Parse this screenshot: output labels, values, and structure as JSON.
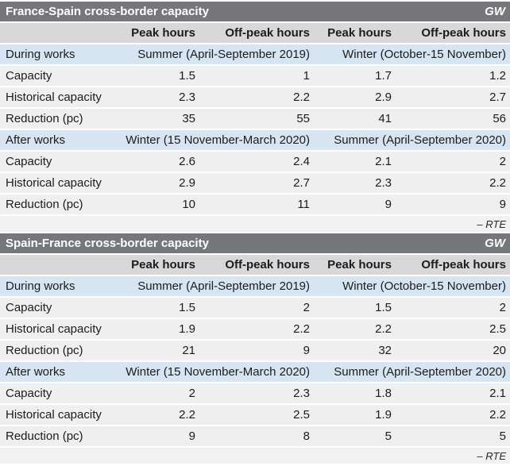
{
  "colors": {
    "title_bar": "#76777b",
    "title_text": "#ffffff",
    "header_row": "#d8d8d8",
    "band_row": "#d7e4f2",
    "data_row": "#efefef",
    "source_row": "#f1f1f1",
    "text": "#1c1c1c",
    "background": "#ffffff"
  },
  "chart_data": [
    {
      "type": "table",
      "title": "France-Spain cross-border capacity",
      "unit": "GW",
      "column_headers": [
        "Peak hours",
        "Off-peak hours",
        "Peak hours",
        "Off-peak hours"
      ],
      "sections": [
        {
          "band_label": "During works",
          "periods": [
            "Summer (April-September 2019)",
            "Winter (October-15 November)"
          ],
          "rows": [
            {
              "label": "Capacity",
              "values": [
                1.5,
                1,
                1.7,
                1.2
              ]
            },
            {
              "label": "Historical capacity",
              "values": [
                2.3,
                2.2,
                2.9,
                2.7
              ]
            },
            {
              "label": "Reduction (pc)",
              "values": [
                35,
                55,
                41,
                56
              ]
            }
          ]
        },
        {
          "band_label": "After works",
          "periods": [
            "Winter (15 November-March 2020)",
            "Summer (April-September 2020)"
          ],
          "rows": [
            {
              "label": "Capacity",
              "values": [
                2.6,
                2.4,
                2.1,
                2
              ]
            },
            {
              "label": "Historical capacity",
              "values": [
                2.9,
                2.7,
                2.3,
                2.2
              ]
            },
            {
              "label": "Reduction (pc)",
              "values": [
                10,
                11,
                9,
                9
              ]
            }
          ]
        }
      ],
      "source": "– RTE"
    },
    {
      "type": "table",
      "title": "Spain-France cross-border capacity",
      "unit": "GW",
      "column_headers": [
        "Peak hours",
        "Off-peak hours",
        "Peak hours",
        "Off-peak hours"
      ],
      "sections": [
        {
          "band_label": "During works",
          "periods": [
            "Summer (April-September 2019)",
            "Winter (October-15 November)"
          ],
          "rows": [
            {
              "label": "Capacity",
              "values": [
                1.5,
                2,
                1.5,
                2
              ]
            },
            {
              "label": "Historical capacity",
              "values": [
                1.9,
                2.2,
                2.2,
                2.5
              ]
            },
            {
              "label": "Reduction (pc)",
              "values": [
                21,
                9,
                32,
                20
              ]
            }
          ]
        },
        {
          "band_label": "After works",
          "periods": [
            "Winter (15 November-March 2020)",
            "Summer (April-September 2020)"
          ],
          "rows": [
            {
              "label": "Capacity",
              "values": [
                2,
                2.3,
                1.8,
                2.1
              ]
            },
            {
              "label": "Historical capacity",
              "values": [
                2.2,
                2.5,
                1.9,
                2.2
              ]
            },
            {
              "label": "Reduction (pc)",
              "values": [
                9,
                8,
                5,
                5
              ]
            }
          ]
        }
      ],
      "source": "– RTE"
    }
  ]
}
